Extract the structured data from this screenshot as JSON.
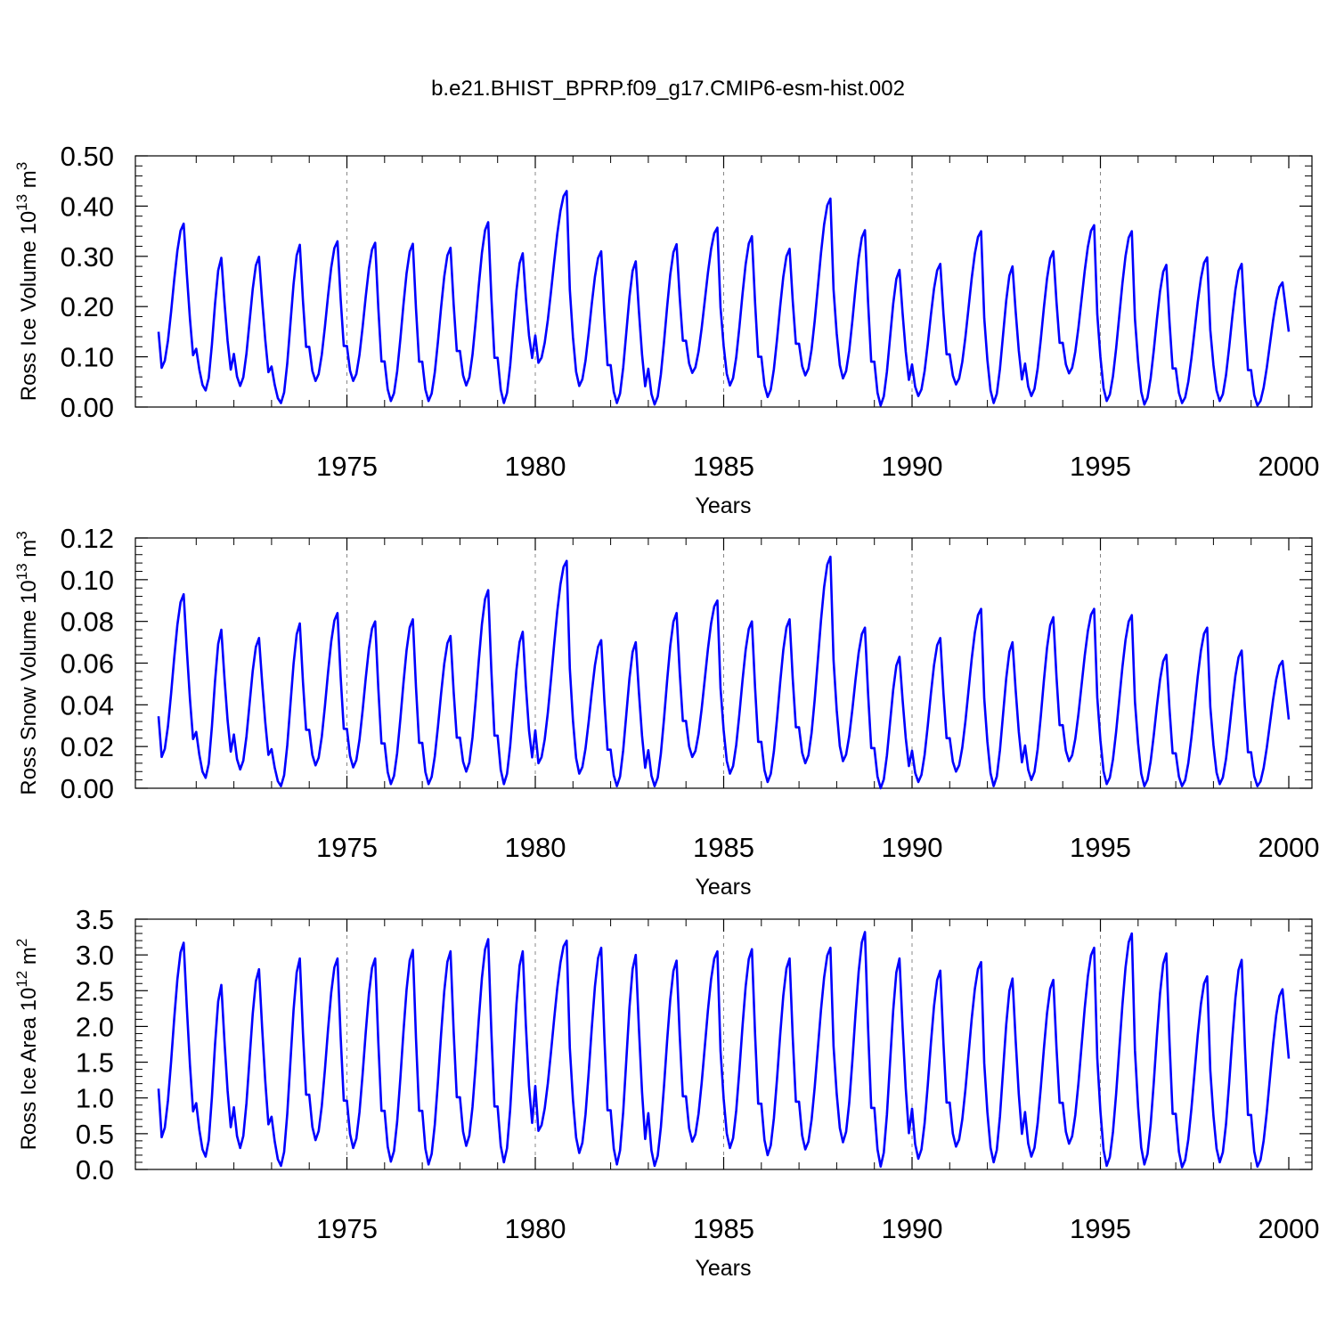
{
  "figure_title": "b.e21.BHIST_BPRP.f09_g17.CMIP6-esm-hist.002",
  "colors": {
    "series": "#0000ff",
    "axes": "#000000",
    "grid": "#888888"
  },
  "chart_data": [
    {
      "type": "line",
      "ylabel": "Ross Ice Volume 10",
      "ylabel_exp": "13",
      "ylabel_unit": "m",
      "ylabel_unit_exp": "3",
      "xlabel": "Years",
      "xlim": [
        1970.0,
        2000.0
      ],
      "ylim": [
        0.0,
        0.5
      ],
      "yticks": [
        0.0,
        0.1,
        0.2,
        0.3,
        0.4,
        0.5
      ],
      "ytick_labels": [
        "0.00",
        "0.10",
        "0.20",
        "0.30",
        "0.40",
        "0.50"
      ],
      "xticks": [
        1975,
        1980,
        1985,
        1990,
        1995,
        2000
      ],
      "xtick_labels": [
        "1975",
        "1980",
        "1985",
        "1990",
        "1995",
        "2000"
      ],
      "grid": "vertical dashed at major x ticks",
      "series": [
        {
          "name": "Ross Ice Volume",
          "start_year": 1970.0,
          "step_years": 0.0833333,
          "annual_max": [
            0.365,
            0.297,
            0.299,
            0.323,
            0.33,
            0.327,
            0.325,
            0.317,
            0.368,
            0.306,
            0.43,
            0.31,
            0.29,
            0.324,
            0.357,
            0.34,
            0.315,
            0.415,
            0.352,
            0.273,
            0.285,
            0.35,
            0.28,
            0.31,
            0.362,
            0.35,
            0.283,
            0.298,
            0.285,
            0.248
          ],
          "annual_min": [
            0.078,
            0.033,
            0.042,
            0.008,
            0.052,
            0.052,
            0.012,
            0.012,
            0.043,
            0.008,
            0.088,
            0.042,
            0.008,
            0.005,
            0.068,
            0.043,
            0.02,
            0.063,
            0.057,
            0.003,
            0.022,
            0.045,
            0.008,
            0.022,
            0.067,
            0.012,
            0.005,
            0.008,
            0.012,
            0.003
          ],
          "max_month": [
            8,
            8,
            8,
            9,
            9,
            9,
            9,
            9,
            9,
            8,
            10,
            9,
            8,
            9,
            10,
            9,
            9,
            10,
            9,
            8,
            9,
            10,
            8,
            9,
            10,
            10,
            9,
            10,
            9,
            10
          ],
          "min_month": [
            1,
            3,
            2,
            3,
            2,
            2,
            2,
            2,
            2,
            2,
            1,
            2,
            2,
            2,
            2,
            2,
            2,
            2,
            2,
            2,
            2,
            2,
            2,
            2,
            2,
            2,
            2,
            2,
            2,
            2
          ],
          "final_value": 0.15
        }
      ]
    },
    {
      "type": "line",
      "ylabel": "Ross Snow Volume 10",
      "ylabel_exp": "13",
      "ylabel_unit": "m",
      "ylabel_unit_exp": "3",
      "xlabel": "Years",
      "xlim": [
        1970.0,
        2000.0
      ],
      "ylim": [
        0.0,
        0.12
      ],
      "yticks": [
        0.0,
        0.02,
        0.04,
        0.06,
        0.08,
        0.1,
        0.12
      ],
      "ytick_labels": [
        "0.00",
        "0.02",
        "0.04",
        "0.06",
        "0.08",
        "0.10",
        "0.12"
      ],
      "xticks": [
        1975,
        1980,
        1985,
        1990,
        1995,
        2000
      ],
      "xtick_labels": [
        "1975",
        "1980",
        "1985",
        "1990",
        "1995",
        "2000"
      ],
      "grid": "vertical dashed at major x ticks",
      "series": [
        {
          "name": "Ross Snow Volume",
          "start_year": 1970.0,
          "step_years": 0.0833333,
          "annual_max": [
            0.093,
            0.076,
            0.072,
            0.079,
            0.084,
            0.08,
            0.081,
            0.073,
            0.095,
            0.075,
            0.109,
            0.071,
            0.07,
            0.084,
            0.09,
            0.08,
            0.081,
            0.111,
            0.077,
            0.063,
            0.072,
            0.086,
            0.07,
            0.082,
            0.086,
            0.083,
            0.064,
            0.077,
            0.066,
            0.061
          ],
          "annual_min": [
            0.015,
            0.005,
            0.009,
            0.001,
            0.011,
            0.01,
            0.002,
            0.002,
            0.008,
            0.002,
            0.012,
            0.007,
            0.001,
            0.001,
            0.015,
            0.007,
            0.003,
            0.012,
            0.013,
            0.0,
            0.003,
            0.008,
            0.001,
            0.004,
            0.013,
            0.002,
            0.001,
            0.001,
            0.002,
            0.001
          ],
          "max_month": [
            8,
            8,
            8,
            9,
            9,
            9,
            9,
            9,
            9,
            8,
            10,
            9,
            8,
            9,
            10,
            9,
            9,
            10,
            9,
            8,
            9,
            10,
            8,
            9,
            10,
            10,
            9,
            10,
            9,
            10
          ],
          "min_month": [
            1,
            3,
            2,
            3,
            2,
            2,
            2,
            2,
            2,
            2,
            1,
            2,
            2,
            2,
            2,
            2,
            2,
            2,
            2,
            2,
            2,
            2,
            2,
            2,
            2,
            2,
            2,
            2,
            2,
            2
          ],
          "final_value": 0.033
        }
      ]
    },
    {
      "type": "line",
      "ylabel": "Ross Ice Area 10",
      "ylabel_exp": "12",
      "ylabel_unit": "m",
      "ylabel_unit_exp": "2",
      "xlabel": "Years",
      "xlim": [
        1970.0,
        2000.0
      ],
      "ylim": [
        0.0,
        3.5
      ],
      "yticks": [
        0.0,
        0.5,
        1.0,
        1.5,
        2.0,
        2.5,
        3.0,
        3.5
      ],
      "ytick_labels": [
        "0.0",
        "0.5",
        "1.0",
        "1.5",
        "2.0",
        "2.5",
        "3.0",
        "3.5"
      ],
      "xticks": [
        1975,
        1980,
        1985,
        1990,
        1995,
        2000
      ],
      "xtick_labels": [
        "1975",
        "1980",
        "1985",
        "1990",
        "1995",
        "2000"
      ],
      "grid": "vertical dashed at major x ticks",
      "series": [
        {
          "name": "Ross Ice Area",
          "start_year": 1970.0,
          "step_years": 0.0833333,
          "annual_max": [
            3.17,
            2.58,
            2.8,
            2.95,
            2.95,
            2.95,
            3.07,
            3.05,
            3.22,
            3.05,
            3.2,
            3.1,
            3.0,
            2.92,
            3.05,
            3.08,
            2.95,
            3.1,
            3.32,
            2.95,
            2.78,
            2.9,
            2.67,
            2.65,
            3.1,
            3.3,
            3.02,
            2.7,
            2.93,
            2.52
          ],
          "annual_min": [
            0.45,
            0.18,
            0.3,
            0.05,
            0.41,
            0.3,
            0.11,
            0.07,
            0.33,
            0.1,
            0.54,
            0.23,
            0.07,
            0.05,
            0.39,
            0.3,
            0.2,
            0.28,
            0.38,
            0.04,
            0.15,
            0.32,
            0.1,
            0.18,
            0.36,
            0.05,
            0.07,
            0.03,
            0.1,
            0.04
          ],
          "max_month": [
            8,
            8,
            8,
            9,
            9,
            9,
            9,
            9,
            9,
            8,
            10,
            9,
            8,
            9,
            10,
            9,
            9,
            10,
            9,
            8,
            9,
            10,
            8,
            9,
            10,
            10,
            9,
            10,
            9,
            10
          ],
          "min_month": [
            1,
            3,
            2,
            3,
            2,
            2,
            2,
            2,
            2,
            2,
            1,
            2,
            2,
            2,
            2,
            2,
            2,
            2,
            2,
            2,
            2,
            2,
            2,
            2,
            2,
            2,
            2,
            2,
            2,
            2
          ],
          "final_value": 1.55
        }
      ]
    }
  ]
}
